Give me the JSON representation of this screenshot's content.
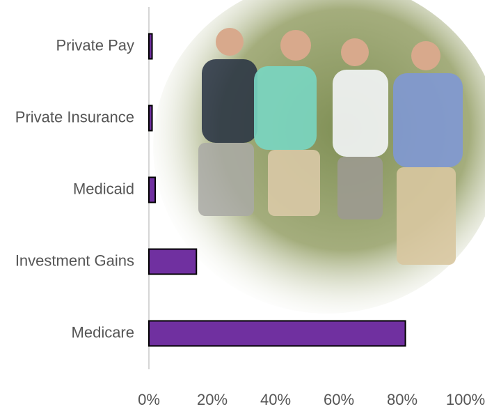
{
  "chart_data": {
    "type": "hbar",
    "categories": [
      "Private Pay",
      "Private Insurance",
      "Medicaid",
      "Investment Gains",
      "Medicare"
    ],
    "values": [
      1,
      1,
      2,
      15,
      81
    ],
    "color": "#7030a0",
    "xlim": [
      0,
      100
    ],
    "xticks": [
      {
        "value": 0,
        "label": "0%"
      },
      {
        "value": 20,
        "label": "20%"
      },
      {
        "value": 40,
        "label": "40%"
      },
      {
        "value": 60,
        "label": "60%"
      },
      {
        "value": 80,
        "label": "80%"
      },
      {
        "value": 100,
        "label": "100%"
      }
    ],
    "grid": false
  }
}
